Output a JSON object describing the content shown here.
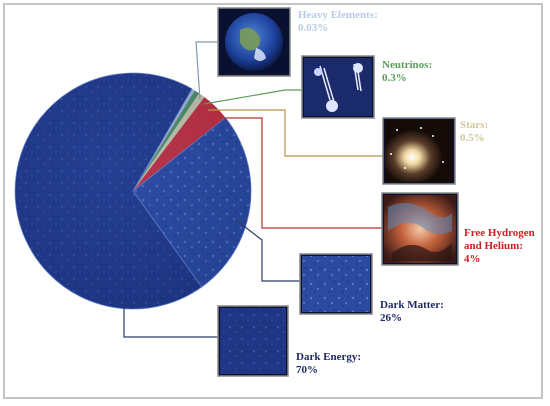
{
  "chart_data": {
    "type": "pie",
    "title": "",
    "slices": [
      {
        "label": "Heavy Elements:",
        "value": 0.03,
        "display": "0.03%",
        "color": "#b8cde3",
        "line_color": "#7f9ab8",
        "text_color": "#b8cde3"
      },
      {
        "label": "Neutrinos:",
        "value": 0.3,
        "display": "0.3%",
        "color": "#5a9e5a",
        "line_color": "#5a9e5a",
        "text_color": "#5a9e5a"
      },
      {
        "label": "Stars:",
        "value": 0.5,
        "display": "0.5%",
        "color": "#e3dfaa",
        "line_color": "#b8954a",
        "text_color": "#cfc99a"
      },
      {
        "label": "Free Hydrogen and Helium:",
        "value": 4,
        "display": "4%",
        "color": "#e02b2b",
        "line_color": "#b83030",
        "text_color": "#cc1f1f"
      },
      {
        "label": "Dark Matter:",
        "value": 26,
        "display": "26%",
        "color": "#2e52a6",
        "line_color": "#2a3a6a",
        "text_color": "#1d2a66"
      },
      {
        "label": "Dark Energy:",
        "value": 70,
        "display": "70%",
        "color": "#1f3a8a",
        "line_color": "#2a3a6a",
        "text_color": "#1d2a66"
      }
    ],
    "icons": [
      "earth-photo",
      "neutrino-tracks-photo",
      "star-cluster-photo",
      "gas-nebula-photo",
      "dark-matter-texture",
      "dark-energy-texture"
    ]
  }
}
